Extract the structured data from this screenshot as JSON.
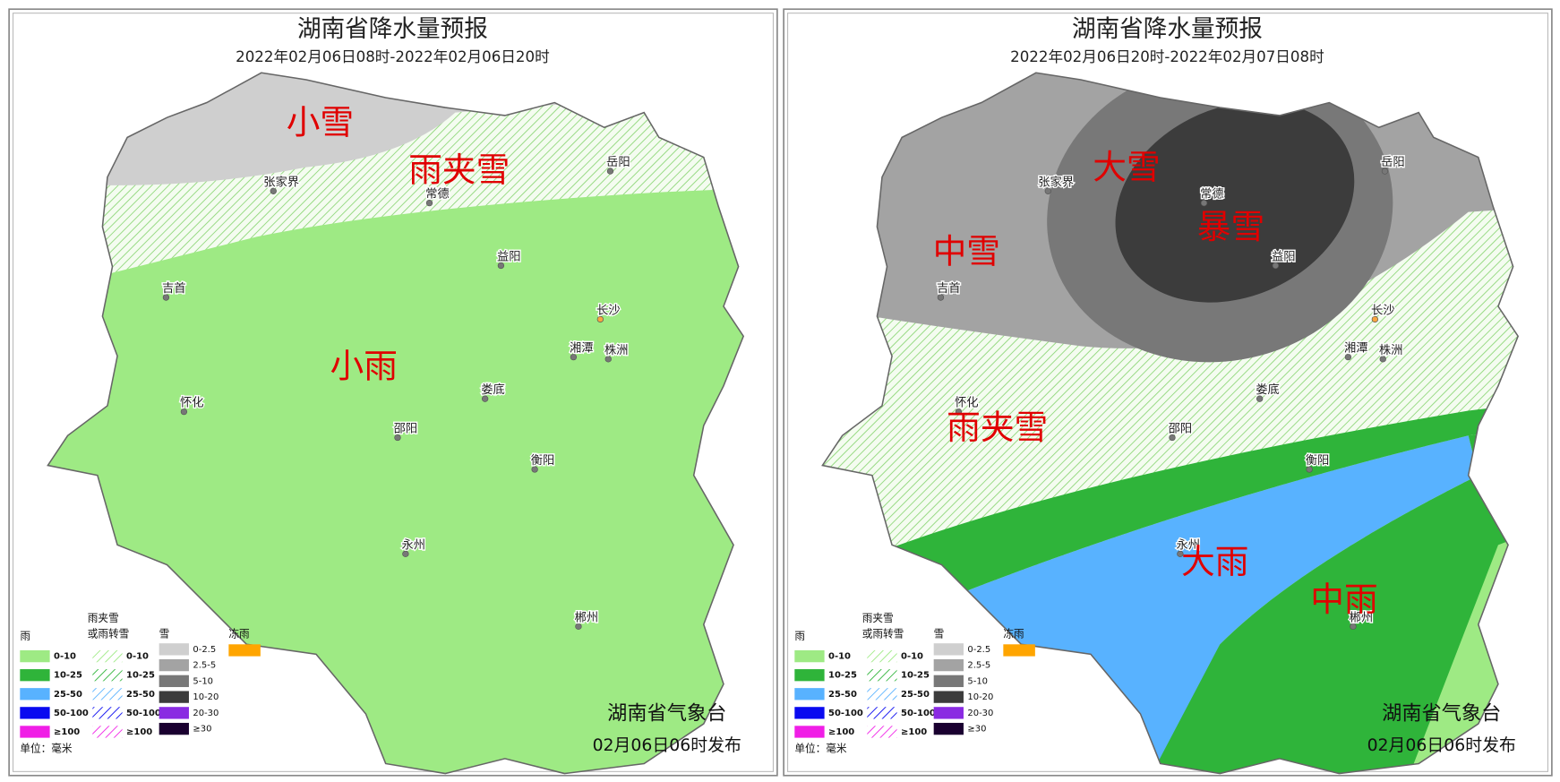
{
  "panels": [
    {
      "title": "湖南省降水量预报",
      "subtitle": "2022年02月06日08时-2022年02月06日20时",
      "region_labels": [
        "小雪",
        "雨夹雪",
        "小雨"
      ],
      "cities": [
        "张家界",
        "常德",
        "岳阳",
        "益阳",
        "吉首",
        "长沙",
        "湘潭",
        "株洲",
        "娄底",
        "怀化",
        "邵阳",
        "衡阳",
        "永州",
        "郴州"
      ]
    },
    {
      "title": "湖南省降水量预报",
      "subtitle": "2022年02月06日20时-2022年02月07日08时",
      "region_labels": [
        "大雪",
        "暴雪",
        "中雪",
        "雨夹雪",
        "大雨",
        "中雨"
      ],
      "cities": [
        "张家界",
        "常德",
        "岳阳",
        "益阳",
        "吉首",
        "长沙",
        "湘潭",
        "株洲",
        "娄底",
        "怀化",
        "邵阳",
        "衡阳",
        "永州",
        "郴州"
      ]
    }
  ],
  "legend": {
    "rain_header": "雨",
    "mix_header": [
      "雨夹雪",
      "或雨转雪"
    ],
    "snow_header": "雪",
    "freeze_header": "冻雨",
    "rain": [
      {
        "label": "0-10",
        "color": "#9eea84"
      },
      {
        "label": "10-25",
        "color": "#2fb43a"
      },
      {
        "label": "25-50",
        "color": "#58b2ff"
      },
      {
        "label": "50-100",
        "color": "#0a0af0"
      },
      {
        "label": "≥100",
        "color": "#f01ee6"
      }
    ],
    "mix": [
      {
        "label": "0-10",
        "color": "#9eea84"
      },
      {
        "label": "10-25",
        "color": "#2fb43a"
      },
      {
        "label": "25-50",
        "color": "#58b2ff"
      },
      {
        "label": "50-100",
        "color": "#0a0af0"
      },
      {
        "label": "≥100",
        "color": "#f01ee6"
      }
    ],
    "snow": [
      {
        "label": "0-2.5",
        "color": "#cfcfcf"
      },
      {
        "label": "2.5-5",
        "color": "#a3a3a3"
      },
      {
        "label": "5-10",
        "color": "#787878"
      },
      {
        "label": "10-20",
        "color": "#3c3c3c"
      },
      {
        "label": "20-30",
        "color": "#8a2be2"
      },
      {
        "label": "≥30",
        "color": "#1a0030"
      }
    ],
    "freeze_color": "#ffa500",
    "unit": "单位：毫米"
  },
  "footer": {
    "issuer": "湖南省气象台",
    "release": "02月06日06时发布"
  }
}
